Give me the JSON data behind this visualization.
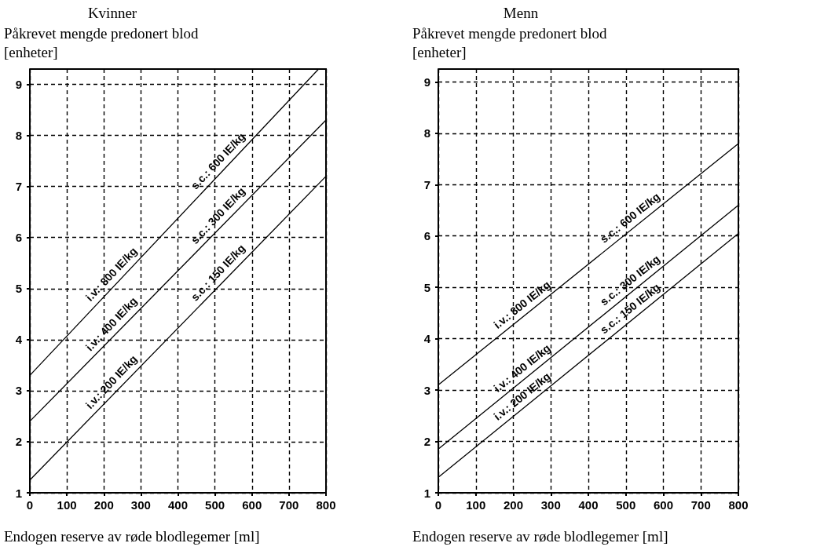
{
  "chart_data": [
    {
      "type": "line",
      "title": "Kvinner",
      "ylabel": "Påkrevet mengde predonert blod [enheter]",
      "xlabel": "Endogen reserve av røde blodlegemer [ml]",
      "xlim": [
        0,
        800
      ],
      "xticks": [
        0,
        100,
        200,
        300,
        400,
        500,
        600,
        700,
        800
      ],
      "ylim": [
        1,
        9.3
      ],
      "yticks": [
        1,
        2,
        3,
        4,
        5,
        6,
        7,
        8,
        9
      ],
      "grid": true,
      "marker": "none",
      "line_style": "solid",
      "series": [
        {
          "color": "#000000",
          "x": [
            0,
            780
          ],
          "values": [
            3.3,
            9.3
          ]
        },
        {
          "color": "#000000",
          "x": [
            0,
            800
          ],
          "values": [
            2.4,
            8.3
          ]
        },
        {
          "color": "#000000",
          "x": [
            0,
            800
          ],
          "values": [
            1.25,
            7.2
          ]
        }
      ],
      "annotations": [
        "i.v.: 800 IE/kg",
        "i.v.: 400 IE/kg",
        "i.v.: 200 IE/kg",
        "s.c.: 600 IE/kg",
        "s.c.: 300 IE/kg",
        "s.c.: 150 IE/kg"
      ]
    },
    {
      "type": "line",
      "title": "Menn",
      "ylabel": "Påkrevet mengde predonert blod [enheter]",
      "xlabel": "Endogen reserve av røde blodlegemer [ml]",
      "xlim": [
        0,
        800
      ],
      "xticks": [
        0,
        100,
        200,
        300,
        400,
        500,
        600,
        700,
        800
      ],
      "ylim": [
        1,
        9.25
      ],
      "yticks": [
        1,
        2,
        3,
        4,
        5,
        6,
        7,
        8,
        9
      ],
      "grid": true,
      "marker": "none",
      "line_style": "solid",
      "series": [
        {
          "color": "#000000",
          "x": [
            0,
            800
          ],
          "values": [
            3.1,
            7.8
          ]
        },
        {
          "color": "#000000",
          "x": [
            0,
            800
          ],
          "values": [
            1.85,
            6.6
          ]
        },
        {
          "color": "#000000",
          "x": [
            0,
            800
          ],
          "values": [
            1.3,
            6.05
          ]
        }
      ],
      "annotations": [
        "i.v.: 800 IE/kg",
        "i.v.: 400 IE/kg",
        "i.v.: 200 IE/kg",
        "s.c.: 600 IE/kg",
        "s.c.: 300 IE/kg",
        "s.c.: 150 IE/kg"
      ]
    }
  ]
}
